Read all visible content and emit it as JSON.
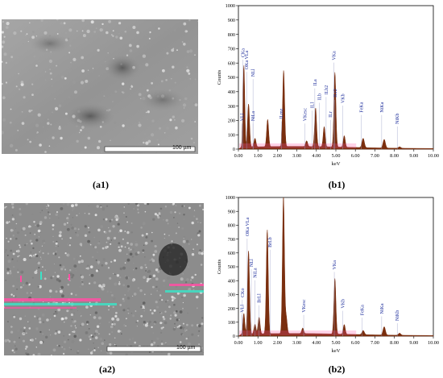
{
  "captions": {
    "a1": "(a1)",
    "b1": "(b1)",
    "a2": "(a2)",
    "b2": "(b2)"
  },
  "sem": {
    "a1": {
      "scalebar_label": "100 µm"
    },
    "a2": {
      "scalebar_label": "100 µm"
    }
  },
  "colors": {
    "spectrum_fill": "#7a2e0e",
    "element_label": "#1f2f9c",
    "sem_gray": "#9a9a9a",
    "artifact_pink": "#ff4fa3",
    "artifact_cyan": "#3ce2c6"
  },
  "chart_data": [
    {
      "id": "b1",
      "type": "area",
      "ylabel": "Counts",
      "xlabel": "keV",
      "xlim": [
        0,
        10
      ],
      "ylim": [
        0,
        1000
      ],
      "xticks": [
        "0.00",
        "1.00",
        "2.00",
        "3.00",
        "4.00",
        "5.00",
        "6.00",
        "7.00",
        "8.00",
        "9.00",
        "10.00"
      ],
      "yticks": [
        "0",
        "100",
        "200",
        "300",
        "400",
        "500",
        "600",
        "700",
        "800",
        "900",
        "1000"
      ],
      "peaks": [
        {
          "x": 0.28,
          "y": 570,
          "w": 0.045
        },
        {
          "x": 0.52,
          "y": 300,
          "w": 0.05
        },
        {
          "x": 0.85,
          "y": 60,
          "w": 0.05
        },
        {
          "x": 1.5,
          "y": 190,
          "w": 0.05
        },
        {
          "x": 2.32,
          "y": 530,
          "w": 0.05
        },
        {
          "x": 3.5,
          "y": 40,
          "w": 0.05
        },
        {
          "x": 3.96,
          "y": 270,
          "w": 0.05
        },
        {
          "x": 4.4,
          "y": 140,
          "w": 0.05
        },
        {
          "x": 4.95,
          "y": 520,
          "w": 0.05
        },
        {
          "x": 5.43,
          "y": 80,
          "w": 0.05
        },
        {
          "x": 6.4,
          "y": 65,
          "w": 0.06
        },
        {
          "x": 7.48,
          "y": 60,
          "w": 0.06
        },
        {
          "x": 8.27,
          "y": 10,
          "w": 0.06
        }
      ],
      "background": 15,
      "labels": [
        {
          "text": "CKa",
          "x": 0.22,
          "y": 640
        },
        {
          "text": "OKa VLa",
          "x": 0.42,
          "y": 555
        },
        {
          "text": "NLl",
          "x": 0.75,
          "y": 505
        },
        {
          "text": "NiLa",
          "x": 0.75,
          "y": 195
        },
        {
          "text": "VLl",
          "x": 0.18,
          "y": 195
        },
        {
          "text": "ILmz",
          "x": 2.2,
          "y": 210
        },
        {
          "text": "VKesc",
          "x": 3.4,
          "y": 195
        },
        {
          "text": "ILl",
          "x": 3.78,
          "y": 285
        },
        {
          "text": "ILa",
          "x": 3.92,
          "y": 440
        },
        {
          "text": "ILb",
          "x": 4.15,
          "y": 340
        },
        {
          "text": "ILb2",
          "x": 4.5,
          "y": 380
        },
        {
          "text": "ILr",
          "x": 4.72,
          "y": 220
        },
        {
          "text": "ILr2",
          "x": 4.95,
          "y": 360
        },
        {
          "text": "VKa",
          "x": 4.9,
          "y": 620
        },
        {
          "text": "VKb",
          "x": 5.35,
          "y": 320
        },
        {
          "text": "FeKa",
          "x": 6.3,
          "y": 255
        },
        {
          "text": "NiKa",
          "x": 7.35,
          "y": 255
        },
        {
          "text": "NiKb",
          "x": 8.15,
          "y": 175
        }
      ]
    },
    {
      "id": "b2",
      "type": "area",
      "ylabel": "Counts",
      "xlabel": "keV",
      "xlim": [
        0,
        10
      ],
      "ylim": [
        0,
        1000
      ],
      "xticks": [
        "0.00",
        "1.00",
        "2.00",
        "3.00",
        "4.00",
        "5.00",
        "6.00",
        "7.00",
        "8.00",
        "9.00",
        "10.00"
      ],
      "yticks": [
        "0",
        "100",
        "200",
        "300",
        "400",
        "500",
        "600",
        "700",
        "800",
        "900",
        "1000"
      ],
      "peaks": [
        {
          "x": 0.28,
          "y": 150,
          "w": 0.045
        },
        {
          "x": 0.52,
          "y": 600,
          "w": 0.05
        },
        {
          "x": 0.85,
          "y": 70,
          "w": 0.05
        },
        {
          "x": 1.06,
          "y": 120,
          "w": 0.05
        },
        {
          "x": 1.48,
          "y": 750,
          "w": 0.05
        },
        {
          "x": 2.31,
          "y": 990,
          "w": 0.05
        },
        {
          "x": 2.45,
          "y": 120,
          "w": 0.05
        },
        {
          "x": 3.3,
          "y": 40,
          "w": 0.05
        },
        {
          "x": 4.95,
          "y": 400,
          "w": 0.05
        },
        {
          "x": 5.43,
          "y": 70,
          "w": 0.05
        },
        {
          "x": 6.4,
          "y": 30,
          "w": 0.06
        },
        {
          "x": 7.48,
          "y": 60,
          "w": 0.06
        },
        {
          "x": 8.27,
          "y": 15,
          "w": 0.06
        }
      ],
      "background": 15,
      "labels": [
        {
          "text": "OKa VLa",
          "x": 0.45,
          "y": 720
        },
        {
          "text": "NLl",
          "x": 0.66,
          "y": 500
        },
        {
          "text": "NiLa",
          "x": 0.85,
          "y": 420
        },
        {
          "text": "CKo",
          "x": 0.2,
          "y": 280
        },
        {
          "text": "VLl",
          "x": 0.18,
          "y": 170
        },
        {
          "text": "BrLl",
          "x": 1.05,
          "y": 240
        },
        {
          "text": "BrLb",
          "x": 1.62,
          "y": 640
        },
        {
          "text": "VKesc",
          "x": 3.35,
          "y": 170
        },
        {
          "text": "VKa",
          "x": 4.92,
          "y": 480
        },
        {
          "text": "VKb",
          "x": 5.35,
          "y": 200
        },
        {
          "text": "FeKa",
          "x": 6.35,
          "y": 150
        },
        {
          "text": "NiKa",
          "x": 7.35,
          "y": 160
        },
        {
          "text": "NiKb",
          "x": 8.15,
          "y": 110
        }
      ]
    }
  ]
}
